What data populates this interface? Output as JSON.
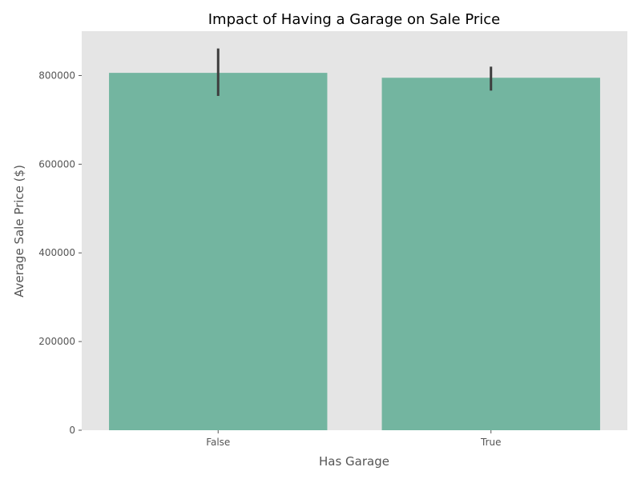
{
  "chart_data": {
    "type": "bar",
    "title": "Impact of Having a Garage on Sale Price",
    "xlabel": "Has Garage",
    "ylabel": "Average Sale Price ($)",
    "categories": [
      "False",
      "True"
    ],
    "values": [
      806000,
      795000
    ],
    "error_bars": [
      {
        "low": 754000,
        "high": 861000
      },
      {
        "low": 766000,
        "high": 820000
      }
    ],
    "ylim": [
      0,
      900000
    ],
    "yticks": [
      0,
      200000,
      400000,
      600000,
      800000
    ],
    "ytick_labels": [
      "0",
      "200000",
      "400000",
      "600000",
      "800000"
    ],
    "grid": false,
    "legend": "none",
    "colors": {
      "bar": "#73b5a0",
      "error_bar": "#3d3d3d",
      "plot_background": "#e5e5e5",
      "text": "#555555",
      "title": "#000000"
    }
  }
}
